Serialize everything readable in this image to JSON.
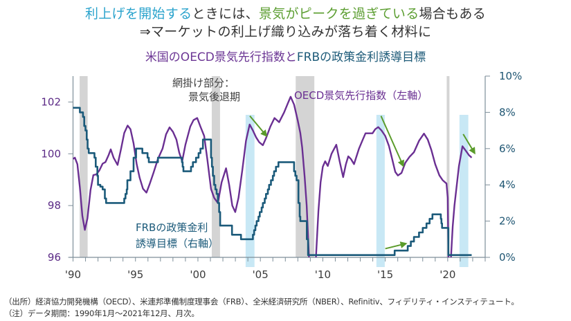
{
  "header": {
    "title_line1": [
      {
        "text": "利上げを開始する",
        "color": "#2aa3cc"
      },
      {
        "text": "ときには、",
        "color": "#333333"
      },
      {
        "text": "景気がピークを過ぎている",
        "color": "#5c9e31"
      },
      {
        "text": "場合もある",
        "color": "#333333"
      }
    ],
    "title_line2": "⇒マーケットの利上げ織り込みが落ち着く材料に"
  },
  "chart_data": {
    "type": "line",
    "title": [
      {
        "text": "米国のOECD景気先行指数と",
        "color": "#6b3594"
      },
      {
        "text": "FRBの政策金利誘導目標",
        "color": "#1c5a78"
      }
    ],
    "xlabel": "",
    "x_range": [
      1990,
      2023
    ],
    "x_ticks": [
      {
        "year": 1990,
        "label": "'90"
      },
      {
        "year": 1995,
        "label": "'95"
      },
      {
        "year": 2000,
        "label": "'00"
      },
      {
        "year": 2005,
        "label": "'05"
      },
      {
        "year": 2010,
        "label": "'10"
      },
      {
        "year": 2015,
        "label": "'15"
      },
      {
        "year": 2020,
        "label": "'20"
      }
    ],
    "x_minor_ticks": "yearly",
    "y_left": {
      "range": [
        96,
        103
      ],
      "ticks": [
        {
          "v": 96,
          "label": "96"
        },
        {
          "v": 98,
          "label": "98"
        },
        {
          "v": 100,
          "label": "100"
        },
        {
          "v": 102,
          "label": "102"
        }
      ]
    },
    "y_right": {
      "range": [
        0,
        10
      ],
      "ticks": [
        {
          "v": 0,
          "label": "0%"
        },
        {
          "v": 2,
          "label": "2%"
        },
        {
          "v": 4,
          "label": "4%"
        },
        {
          "v": 6,
          "label": "6%"
        },
        {
          "v": 8,
          "label": "8%"
        },
        {
          "v": 10,
          "label": "10%"
        }
      ]
    },
    "grid": false,
    "colors": {
      "oecd": "#6a2f92",
      "frb": "#1b5a7a",
      "recession": "#d4d4d4",
      "hike_start": "#c8e8f5",
      "arrow": "#5a9b2a",
      "axis": "#7d8e99"
    },
    "series": [
      {
        "name": "OECD景気先行指数（左軸）",
        "axis": "left",
        "points": [
          [
            1990.0,
            99.8
          ],
          [
            1990.15,
            99.85
          ],
          [
            1990.35,
            99.6
          ],
          [
            1990.55,
            98.7
          ],
          [
            1990.75,
            97.6
          ],
          [
            1990.95,
            97.06
          ],
          [
            1991.15,
            97.5
          ],
          [
            1991.4,
            98.6
          ],
          [
            1991.63,
            99.18
          ],
          [
            1991.85,
            99.2
          ],
          [
            1992.1,
            99.35
          ],
          [
            1992.37,
            99.62
          ],
          [
            1992.6,
            99.68
          ],
          [
            1992.85,
            99.95
          ],
          [
            1993.02,
            100.17
          ],
          [
            1993.25,
            99.85
          ],
          [
            1993.57,
            99.57
          ],
          [
            1993.85,
            100.2
          ],
          [
            1994.1,
            100.8
          ],
          [
            1994.37,
            101.09
          ],
          [
            1994.6,
            100.95
          ],
          [
            1994.85,
            100.4
          ],
          [
            1995.1,
            99.6
          ],
          [
            1995.33,
            99.08
          ],
          [
            1995.6,
            98.65
          ],
          [
            1995.88,
            98.5
          ],
          [
            1996.15,
            98.85
          ],
          [
            1996.44,
            99.26
          ],
          [
            1996.8,
            99.8
          ],
          [
            1997.17,
            100.2
          ],
          [
            1997.45,
            100.75
          ],
          [
            1997.73,
            101.02
          ],
          [
            1998.0,
            100.85
          ],
          [
            1998.28,
            100.55
          ],
          [
            1998.5,
            100.05
          ],
          [
            1998.74,
            99.71
          ],
          [
            1999.0,
            100.35
          ],
          [
            1999.39,
            101.05
          ],
          [
            1999.65,
            101.3
          ],
          [
            1999.94,
            101.38
          ],
          [
            2000.2,
            101.05
          ],
          [
            2000.5,
            100.69
          ],
          [
            2000.75,
            99.8
          ],
          [
            2001.05,
            98.64
          ],
          [
            2001.3,
            98.3
          ],
          [
            2001.6,
            98.1
          ],
          [
            2001.9,
            98.9
          ],
          [
            2002.25,
            99.44
          ],
          [
            2002.5,
            98.8
          ],
          [
            2002.75,
            98.0
          ],
          [
            2002.99,
            97.75
          ],
          [
            2003.25,
            98.3
          ],
          [
            2003.55,
            99.35
          ],
          [
            2003.85,
            100.5
          ],
          [
            2004.14,
            101.13
          ],
          [
            2004.4,
            100.9
          ],
          [
            2004.65,
            100.64
          ],
          [
            2004.9,
            100.45
          ],
          [
            2005.2,
            100.33
          ],
          [
            2005.45,
            100.6
          ],
          [
            2005.8,
            101.05
          ],
          [
            2006.13,
            101.38
          ],
          [
            2006.5,
            101.22
          ],
          [
            2006.9,
            101.6
          ],
          [
            2007.2,
            101.95
          ],
          [
            2007.42,
            102.2
          ],
          [
            2007.7,
            101.9
          ],
          [
            2007.98,
            101.31
          ],
          [
            2008.2,
            100.8
          ],
          [
            2008.35,
            100.24
          ],
          [
            2008.55,
            99.1
          ],
          [
            2008.71,
            98.0
          ],
          [
            2008.9,
            95.9
          ],
          [
            2009.1,
            93.0
          ],
          [
            2009.3,
            94.5
          ],
          [
            2009.45,
            96.0
          ],
          [
            2009.65,
            97.8
          ],
          [
            2009.82,
            98.9
          ],
          [
            2010.0,
            99.5
          ],
          [
            2010.19,
            99.71
          ],
          [
            2010.4,
            99.53
          ],
          [
            2010.7,
            100.0
          ],
          [
            2011.08,
            100.35
          ],
          [
            2011.35,
            99.7
          ],
          [
            2011.63,
            99.1
          ],
          [
            2011.85,
            99.6
          ],
          [
            2012.04,
            99.9
          ],
          [
            2012.25,
            99.8
          ],
          [
            2012.5,
            99.6
          ],
          [
            2012.9,
            100.2
          ],
          [
            2013.2,
            100.55
          ],
          [
            2013.42,
            100.79
          ],
          [
            2013.98,
            100.79
          ],
          [
            2014.2,
            100.95
          ],
          [
            2014.44,
            101.03
          ],
          [
            2014.7,
            100.9
          ],
          [
            2015.0,
            100.69
          ],
          [
            2015.3,
            100.3
          ],
          [
            2015.55,
            99.8
          ],
          [
            2015.8,
            99.3
          ],
          [
            2016.01,
            99.16
          ],
          [
            2016.3,
            99.26
          ],
          [
            2016.6,
            99.65
          ],
          [
            2016.94,
            99.88
          ],
          [
            2017.3,
            100.06
          ],
          [
            2017.7,
            100.5
          ],
          [
            2018.1,
            100.78
          ],
          [
            2018.4,
            100.55
          ],
          [
            2018.69,
            100.15
          ],
          [
            2019.0,
            99.6
          ],
          [
            2019.33,
            99.17
          ],
          [
            2019.6,
            98.98
          ],
          [
            2019.9,
            98.85
          ],
          [
            2020.0,
            98.3
          ],
          [
            2020.06,
            96.0
          ],
          [
            2020.15,
            93.0
          ],
          [
            2020.26,
            96.0
          ],
          [
            2020.4,
            97.2
          ],
          [
            2020.54,
            98.0
          ],
          [
            2020.9,
            99.53
          ],
          [
            2021.18,
            100.29
          ],
          [
            2021.46,
            100.11
          ],
          [
            2021.7,
            99.95
          ],
          [
            2021.92,
            99.85
          ]
        ]
      },
      {
        "name": "FRBの政策金利誘導目標（右軸）",
        "axis": "right",
        "unit": "%",
        "points": [
          [
            1990.0,
            8.25
          ],
          [
            1990.5,
            8.25
          ],
          [
            1990.55,
            8.0
          ],
          [
            1990.75,
            8.0
          ],
          [
            1990.8,
            7.75
          ],
          [
            1990.9,
            7.25
          ],
          [
            1991.0,
            7.0
          ],
          [
            1991.1,
            6.5
          ],
          [
            1991.17,
            6.0
          ],
          [
            1991.26,
            5.75
          ],
          [
            1991.63,
            5.75
          ],
          [
            1991.72,
            5.5
          ],
          [
            1991.82,
            5.0
          ],
          [
            1991.95,
            4.5
          ],
          [
            1992.0,
            4.0
          ],
          [
            1992.19,
            3.9
          ],
          [
            1992.37,
            3.75
          ],
          [
            1992.55,
            3.25
          ],
          [
            1992.65,
            3.0
          ],
          [
            1994.03,
            3.0
          ],
          [
            1994.1,
            3.25
          ],
          [
            1994.2,
            3.5
          ],
          [
            1994.3,
            3.75
          ],
          [
            1994.35,
            4.25
          ],
          [
            1994.6,
            4.75
          ],
          [
            1994.7,
            4.75
          ],
          [
            1994.85,
            5.5
          ],
          [
            1995.05,
            6.0
          ],
          [
            1995.5,
            6.0
          ],
          [
            1995.55,
            5.75
          ],
          [
            1995.9,
            5.75
          ],
          [
            1995.97,
            5.5
          ],
          [
            1996.07,
            5.25
          ],
          [
            1996.75,
            5.25
          ],
          [
            1996.8,
            5.5
          ],
          [
            1998.65,
            5.5
          ],
          [
            1998.72,
            5.25
          ],
          [
            1998.78,
            5.0
          ],
          [
            1998.84,
            4.75
          ],
          [
            1999.39,
            4.75
          ],
          [
            1999.45,
            5.0
          ],
          [
            1999.6,
            5.25
          ],
          [
            1999.85,
            5.5
          ],
          [
            2000.05,
            5.75
          ],
          [
            2000.2,
            6.0
          ],
          [
            2000.4,
            6.5
          ],
          [
            2000.96,
            6.5
          ],
          [
            2001.05,
            5.5
          ],
          [
            2001.12,
            5.0
          ],
          [
            2001.2,
            4.5
          ],
          [
            2001.3,
            4.0
          ],
          [
            2001.4,
            3.75
          ],
          [
            2001.5,
            3.5
          ],
          [
            2001.6,
            3.0
          ],
          [
            2001.7,
            2.5
          ],
          [
            2001.78,
            1.75
          ],
          [
            2002.68,
            1.75
          ],
          [
            2002.73,
            1.25
          ],
          [
            2003.4,
            1.25
          ],
          [
            2003.45,
            1.0
          ],
          [
            2004.3,
            1.0
          ],
          [
            2004.4,
            1.25
          ],
          [
            2004.5,
            1.5
          ],
          [
            2004.6,
            1.75
          ],
          [
            2004.7,
            2.0
          ],
          [
            2004.85,
            2.25
          ],
          [
            2004.95,
            2.5
          ],
          [
            2005.1,
            2.75
          ],
          [
            2005.2,
            3.0
          ],
          [
            2005.35,
            3.25
          ],
          [
            2005.45,
            3.5
          ],
          [
            2005.6,
            3.75
          ],
          [
            2005.7,
            4.0
          ],
          [
            2005.85,
            4.25
          ],
          [
            2006.0,
            4.5
          ],
          [
            2006.1,
            4.75
          ],
          [
            2006.25,
            5.0
          ],
          [
            2006.45,
            5.25
          ],
          [
            2007.62,
            5.25
          ],
          [
            2007.7,
            4.75
          ],
          [
            2007.8,
            4.5
          ],
          [
            2007.9,
            4.25
          ],
          [
            2008.05,
            3.0
          ],
          [
            2008.15,
            2.25
          ],
          [
            2008.2,
            2.0
          ],
          [
            2008.65,
            2.0
          ],
          [
            2008.72,
            1.0
          ],
          [
            2008.82,
            0.125
          ],
          [
            2015.7,
            0.125
          ],
          [
            2015.75,
            0.375
          ],
          [
            2016.75,
            0.375
          ],
          [
            2016.8,
            0.625
          ],
          [
            2017.05,
            0.875
          ],
          [
            2017.3,
            1.125
          ],
          [
            2017.7,
            1.375
          ],
          [
            2018.0,
            1.625
          ],
          [
            2018.3,
            1.875
          ],
          [
            2018.55,
            2.125
          ],
          [
            2018.78,
            2.375
          ],
          [
            2019.4,
            2.375
          ],
          [
            2019.45,
            2.125
          ],
          [
            2019.5,
            1.875
          ],
          [
            2019.55,
            1.625
          ],
          [
            2019.95,
            1.625
          ],
          [
            2020.05,
            0.125
          ],
          [
            2021.92,
            0.125
          ]
        ]
      }
    ],
    "recessions": [
      [
        1990.53,
        1991.17
      ],
      [
        2001.11,
        2001.77
      ],
      [
        2007.83,
        2009.32
      ],
      [
        2019.92,
        2020.14
      ]
    ],
    "hike_start_periods": [
      [
        2003.82,
        2004.53
      ],
      [
        2014.29,
        2014.96
      ],
      [
        2020.94,
        2021.65
      ]
    ],
    "arrows": [
      {
        "from": [
          2004.16,
          101.46
        ],
        "to": [
          2005.49,
          100.69
        ],
        "axis": "left"
      },
      {
        "from": [
          2014.66,
          101.46
        ],
        "to": [
          2016.44,
          99.53
        ],
        "axis": "left"
      },
      {
        "from": [
          2021.24,
          100.76
        ],
        "to": [
          2022.16,
          100.02
        ],
        "axis": "left"
      },
      {
        "from": [
          2015.0,
          0.48
        ],
        "to": [
          2016.66,
          0.76
        ],
        "axis": "right"
      }
    ],
    "annotations": {
      "shade_label_line1": "網掛け部分：",
      "shade_label_line2": "景気後退期",
      "oecd_label": "OECD景気先行指数（左軸）",
      "frb_label_line1": "FRBの政策金利",
      "frb_label_line2": "誘導目標（右軸）"
    }
  },
  "footer": {
    "source": "（出所）経済協力開発機構（OECD）、米連邦準備制度理事会（FRB）、全米経済研究所（NBER）、Refinitiv、フィデリティ・インスティテュート。",
    "note": "（注）データ期間：1990年1月〜2021年12月、月次。"
  }
}
